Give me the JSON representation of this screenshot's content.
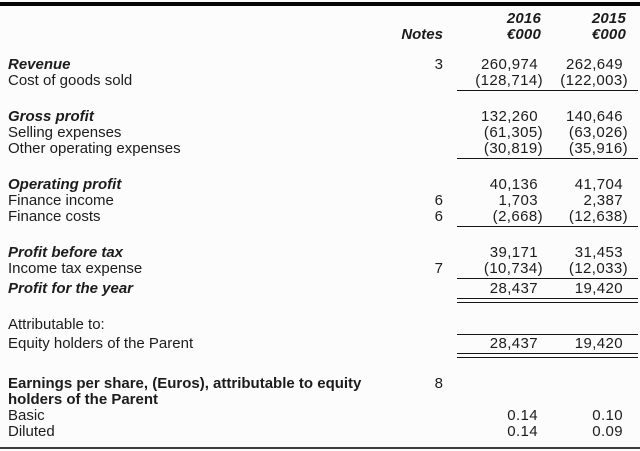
{
  "colors": {
    "background": "#fcfcfc",
    "text": "#1c1c1c",
    "rule": "#161616",
    "top_bar": "#060606",
    "bottom_bar": "#3e3e3e"
  },
  "header": {
    "notes_label": "Notes",
    "col2016": {
      "year": "2016",
      "unit": "€000"
    },
    "col2015": {
      "year": "2015",
      "unit": "€000"
    }
  },
  "sections": [
    {
      "rows": [
        {
          "label": "Revenue",
          "emphasis": "bold-italic",
          "note": "3",
          "v2016": "260,974",
          "v2015": "262,649"
        },
        {
          "label": "Cost of goods sold",
          "v2016": "(128,714)",
          "v2015": "(122,003)",
          "rule_below": "single"
        }
      ]
    },
    {
      "rows": [
        {
          "label": "Gross profit",
          "emphasis": "bold-italic",
          "v2016": "132,260",
          "v2015": "140,646"
        },
        {
          "label": "Selling expenses",
          "v2016": "(61,305)",
          "v2015": "(63,026)"
        },
        {
          "label": "Other operating expenses",
          "v2016": "(30,819)",
          "v2015": "(35,916)",
          "rule_below": "single"
        }
      ]
    },
    {
      "rows": [
        {
          "label": "Operating profit",
          "emphasis": "bold-italic",
          "v2016": "40,136",
          "v2015": "41,704"
        },
        {
          "label": "Finance income",
          "note": "6",
          "v2016": "1,703",
          "v2015": "2,387"
        },
        {
          "label": "Finance costs",
          "note": "6",
          "v2016": "(2,668)",
          "v2015": "(12,638)",
          "rule_below": "single"
        }
      ]
    },
    {
      "rows": [
        {
          "label": "Profit before tax",
          "emphasis": "bold-italic",
          "v2016": "39,171",
          "v2015": "31,453"
        },
        {
          "label": "Income tax expense",
          "note": "7",
          "v2016": "(10,734)",
          "v2015": "(12,033)",
          "rule_below": "single"
        },
        {
          "label": "Profit for the year",
          "emphasis": "bold-italic",
          "v2016": "28,437",
          "v2015": "19,420",
          "rule_below": "double"
        }
      ]
    },
    {
      "rows": [
        {
          "label": "Attributable to:"
        },
        {
          "label": "Equity holders of the Parent",
          "v2016": "28,437",
          "v2015": "19,420",
          "rule_above": "single",
          "rule_below": "double"
        }
      ]
    },
    {
      "size": "large-gap",
      "rows": [
        {
          "label": "Earnings per share, (Euros), attributable to equity holders of the Parent",
          "emphasis": "bold",
          "note": "8",
          "wrap": true
        },
        {
          "label": "Basic",
          "v2016": "0.14",
          "v2015": "0.10"
        },
        {
          "label": "Diluted",
          "v2016": "0.14",
          "v2015": "0.09"
        }
      ]
    }
  ]
}
